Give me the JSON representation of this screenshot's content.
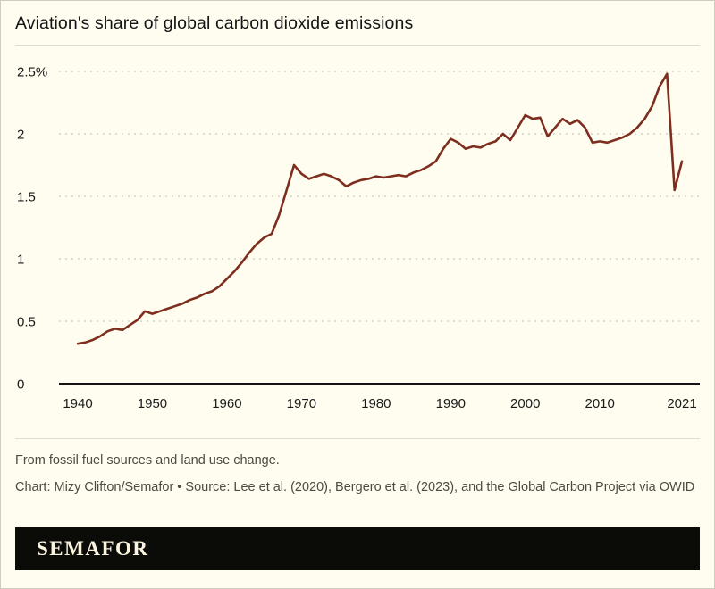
{
  "header": {
    "title": "Aviation's share of global carbon dioxide emissions"
  },
  "colors": {
    "background": "#FFFDF0",
    "line": "#7D2E1E",
    "grid": "#bfbcb0",
    "axis": "#141414",
    "logo_bar": "#0b0b08",
    "logo_text": "#FAF3DD"
  },
  "chart_data": {
    "type": "line",
    "title": "Aviation's share of global carbon dioxide emissions",
    "xlabel": "",
    "ylabel": "",
    "ylim": [
      0,
      2.5
    ],
    "yticks": [
      0,
      0.5,
      1,
      1.5,
      2,
      2.5
    ],
    "ytick_labels": [
      "0",
      "0.5",
      "1",
      "1.5",
      "2",
      "2.5%"
    ],
    "xticks": [
      1940,
      1950,
      1960,
      1970,
      1980,
      1990,
      2000,
      2010,
      2021
    ],
    "grid": "horizontal-dashed",
    "legend": "none",
    "line_color": "#7D2E1E",
    "grid_color": "#bfbcb0",
    "x": [
      1940,
      1941,
      1942,
      1943,
      1944,
      1945,
      1946,
      1947,
      1948,
      1949,
      1950,
      1951,
      1952,
      1953,
      1954,
      1955,
      1956,
      1957,
      1958,
      1959,
      1960,
      1961,
      1962,
      1963,
      1964,
      1965,
      1966,
      1967,
      1968,
      1969,
      1970,
      1971,
      1972,
      1973,
      1974,
      1975,
      1976,
      1977,
      1978,
      1979,
      1980,
      1981,
      1982,
      1983,
      1984,
      1985,
      1986,
      1987,
      1988,
      1989,
      1990,
      1991,
      1992,
      1993,
      1994,
      1995,
      1996,
      1997,
      1998,
      1999,
      2000,
      2001,
      2002,
      2003,
      2004,
      2005,
      2006,
      2007,
      2008,
      2009,
      2010,
      2011,
      2012,
      2013,
      2014,
      2015,
      2016,
      2017,
      2018,
      2019,
      2020,
      2021
    ],
    "values": [
      0.32,
      0.33,
      0.35,
      0.38,
      0.42,
      0.44,
      0.43,
      0.47,
      0.51,
      0.58,
      0.56,
      0.58,
      0.6,
      0.62,
      0.64,
      0.67,
      0.69,
      0.72,
      0.74,
      0.78,
      0.84,
      0.9,
      0.97,
      1.05,
      1.12,
      1.17,
      1.2,
      1.35,
      1.55,
      1.75,
      1.68,
      1.64,
      1.66,
      1.68,
      1.66,
      1.63,
      1.58,
      1.61,
      1.63,
      1.64,
      1.66,
      1.65,
      1.66,
      1.67,
      1.66,
      1.69,
      1.71,
      1.74,
      1.78,
      1.88,
      1.96,
      1.93,
      1.88,
      1.9,
      1.89,
      1.92,
      1.94,
      2.0,
      1.95,
      2.05,
      2.15,
      2.12,
      2.13,
      1.98,
      2.05,
      2.12,
      2.08,
      2.11,
      2.05,
      1.93,
      1.94,
      1.93,
      1.95,
      1.97,
      2.0,
      2.05,
      2.12,
      2.22,
      2.38,
      2.48,
      1.55,
      1.78
    ]
  },
  "footer": {
    "note": "From fossil fuel sources and land use change.",
    "credit": "Chart: Mizy Clifton/Semafor • Source: Lee et al. (2020), Bergero et al. (2023), and the Global Carbon Project via OWID",
    "logo": "SEMAFOR"
  }
}
